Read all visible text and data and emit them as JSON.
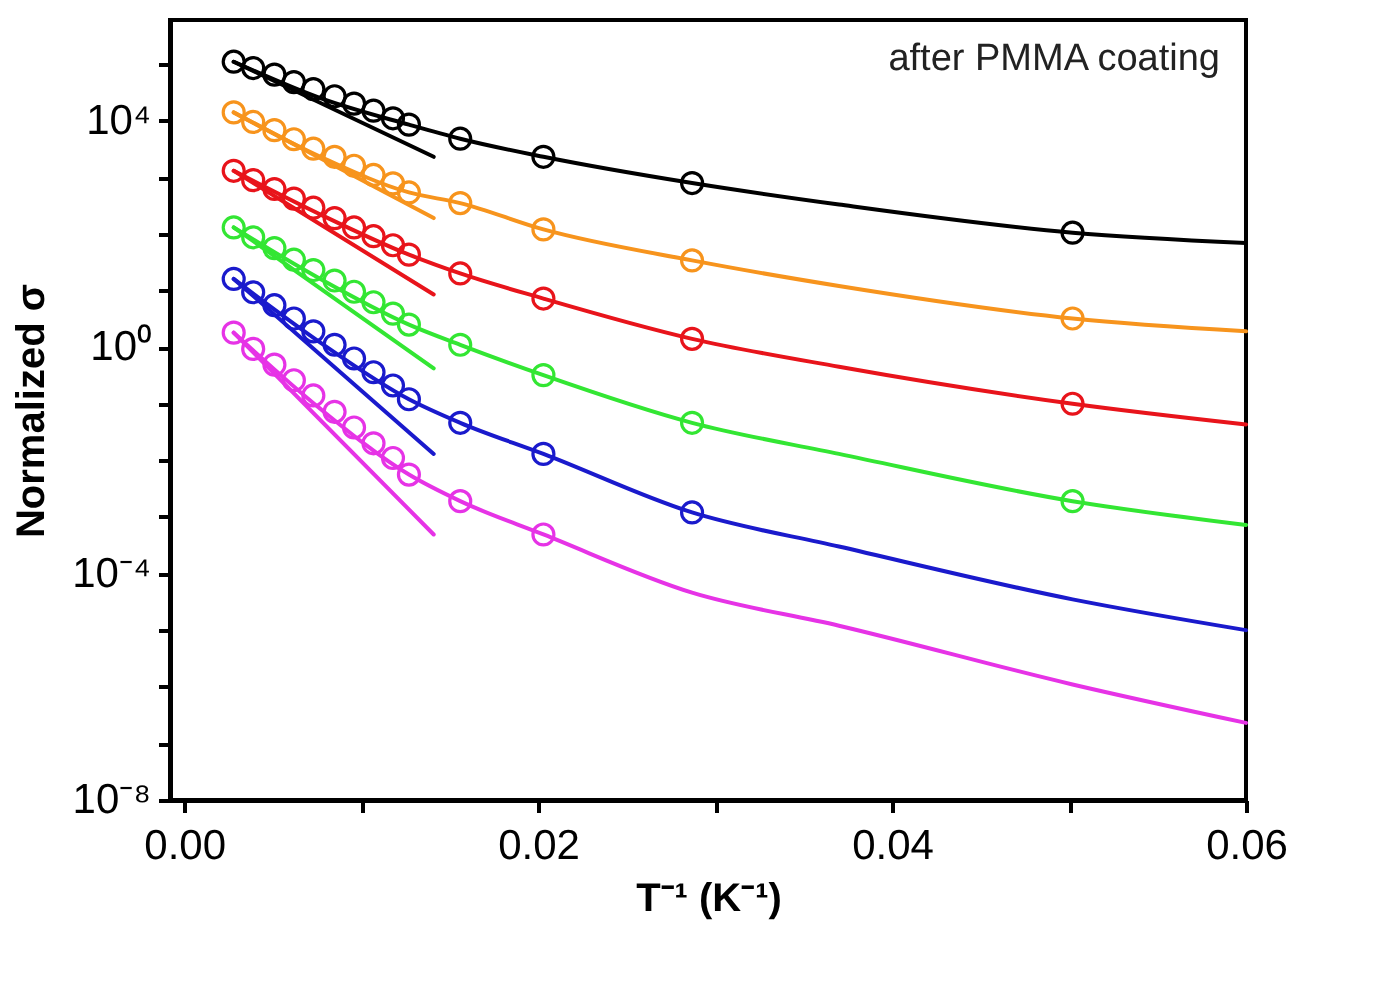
{
  "chart_data": {
    "type": "line",
    "xlabel": "T⁻¹ (K⁻¹)",
    "ylabel": "Normalized σ",
    "annotations": [
      "after PMMA coating"
    ],
    "log": "y",
    "grid": false,
    "xlim": [
      -0.0008,
      0.06
    ],
    "xticks": [
      {
        "value": 0,
        "label": "0.00"
      },
      {
        "value": 0.01,
        "label": null
      },
      {
        "value": 0.02,
        "label": "0.02"
      },
      {
        "value": 0.03,
        "label": null
      },
      {
        "value": 0.04,
        "label": "0.04"
      },
      {
        "value": 0.05,
        "label": null
      },
      {
        "value": 0.06,
        "label": "0.06"
      }
    ],
    "ylim": [
      1e-08,
      600000
    ],
    "yticks": [
      {
        "value": 1e-08,
        "label": "10⁻⁸"
      },
      {
        "value": 1e-07,
        "label": null
      },
      {
        "value": 1e-06,
        "label": null
      },
      {
        "value": 1e-05,
        "label": null
      },
      {
        "value": 0.0001,
        "label": "10⁻⁴"
      },
      {
        "value": 0.001,
        "label": null
      },
      {
        "value": 0.01,
        "label": null
      },
      {
        "value": 0.1,
        "label": null
      },
      {
        "value": 1,
        "label": "10⁰"
      },
      {
        "value": 10,
        "label": null
      },
      {
        "value": 100,
        "label": null
      },
      {
        "value": 1000,
        "label": null
      },
      {
        "value": 10000,
        "label": "10⁴"
      },
      {
        "value": 100000,
        "label": null
      }
    ],
    "series": [
      {
        "type": "scatter",
        "marker": "circle",
        "color": "#000000",
        "x": [
          0.0028,
          0.0039,
          0.0051,
          0.0062,
          0.0073,
          0.0085,
          0.0096,
          0.0107,
          0.0118,
          0.0127,
          0.0156,
          0.0203,
          0.0287,
          0.0502
        ],
        "values": [
          110000,
          85000,
          65000,
          48000,
          36000,
          27000,
          20000,
          15000,
          11000,
          8500,
          4800,
          2300,
          790,
          105
        ]
      },
      {
        "color": "#000000",
        "x": [
          0.0028,
          0.0077,
          0.0127,
          0.0156,
          0.0203,
          0.0287,
          0.037,
          0.0502,
          0.06
        ],
        "values": [
          110000,
          25000,
          8500,
          4800,
          2300,
          790,
          330,
          105,
          69
        ]
      },
      {
        "color": "#000000",
        "x": [
          0.0028,
          0.0141
        ],
        "values": [
          110000,
          2300
        ]
      },
      {
        "type": "scatter",
        "marker": "circle",
        "color": "#f7941d",
        "x": [
          0.0028,
          0.0039,
          0.0051,
          0.0062,
          0.0073,
          0.0085,
          0.0096,
          0.0107,
          0.0118,
          0.0127,
          0.0156,
          0.0203,
          0.0287,
          0.0502
        ],
        "values": [
          14000,
          9500,
          6800,
          4700,
          3200,
          2300,
          1600,
          1100,
          780,
          540,
          350,
          120,
          34,
          3.2
        ]
      },
      {
        "color": "#f7941d",
        "x": [
          0.0028,
          0.0077,
          0.0127,
          0.0156,
          0.0203,
          0.0287,
          0.037,
          0.0502,
          0.06
        ],
        "values": [
          14000,
          2300,
          540,
          350,
          120,
          34,
          12,
          3.2,
          1.9
        ]
      },
      {
        "color": "#f7941d",
        "x": [
          0.0028,
          0.0141
        ],
        "values": [
          14000,
          190
        ]
      },
      {
        "type": "scatter",
        "marker": "circle",
        "color": "#e8141b",
        "x": [
          0.0028,
          0.0039,
          0.0051,
          0.0062,
          0.0073,
          0.0085,
          0.0096,
          0.0107,
          0.0118,
          0.0127,
          0.0156,
          0.0203,
          0.0287,
          0.0502
        ],
        "values": [
          1300,
          890,
          620,
          420,
          290,
          190,
          130,
          91,
          63,
          43,
          20,
          7.2,
          1.4,
          0.1
        ]
      },
      {
        "color": "#e8141b",
        "x": [
          0.0028,
          0.0077,
          0.0127,
          0.0156,
          0.0203,
          0.0287,
          0.037,
          0.0502,
          0.06
        ],
        "values": [
          1300,
          220,
          43,
          20,
          7.2,
          1.4,
          0.45,
          0.1,
          0.043
        ]
      },
      {
        "color": "#e8141b",
        "x": [
          0.0028,
          0.0141
        ],
        "values": [
          1300,
          8.5
        ]
      },
      {
        "type": "scatter",
        "marker": "circle",
        "color": "#33e633",
        "x": [
          0.0028,
          0.0039,
          0.0051,
          0.0062,
          0.0073,
          0.0085,
          0.0096,
          0.0107,
          0.0118,
          0.0127,
          0.0156,
          0.0203,
          0.0287,
          0.0502
        ],
        "values": [
          130,
          87,
          56,
          35,
          23,
          15,
          9.5,
          6.2,
          3.9,
          2.5,
          1.1,
          0.32,
          0.046,
          0.0019
        ]
      },
      {
        "color": "#33e633",
        "x": [
          0.0028,
          0.0077,
          0.0127,
          0.0156,
          0.0203,
          0.0287,
          0.037,
          0.0502,
          0.06
        ],
        "values": [
          130,
          16,
          2.5,
          1.1,
          0.32,
          0.046,
          0.013,
          0.0019,
          0.00072
        ]
      },
      {
        "color": "#33e633",
        "x": [
          0.0028,
          0.0141
        ],
        "values": [
          130,
          0.42
        ]
      },
      {
        "type": "scatter",
        "marker": "circle",
        "color": "#1a1acc",
        "x": [
          0.0028,
          0.0039,
          0.0051,
          0.0062,
          0.0073,
          0.0085,
          0.0096,
          0.0107,
          0.0118,
          0.0127,
          0.0156,
          0.0203,
          0.0287
        ],
        "values": [
          16,
          9.3,
          5.5,
          3.2,
          1.9,
          1.1,
          0.63,
          0.36,
          0.21,
          0.12,
          0.046,
          0.013,
          0.0012
        ]
      },
      {
        "color": "#1a1acc",
        "x": [
          0.0028,
          0.0077,
          0.0127,
          0.0156,
          0.0203,
          0.0287,
          0.037,
          0.0502,
          0.06
        ],
        "values": [
          16,
          1.2,
          0.12,
          0.046,
          0.013,
          0.0012,
          0.0003,
          3.5e-05,
          1e-05
        ]
      },
      {
        "color": "#1a1acc",
        "x": [
          0.0028,
          0.0141
        ],
        "values": [
          16,
          0.013
        ]
      },
      {
        "type": "scatter",
        "marker": "circle",
        "color": "#e633e6",
        "x": [
          0.0028,
          0.0039,
          0.0051,
          0.0062,
          0.0073,
          0.0085,
          0.0096,
          0.0107,
          0.0118,
          0.0127,
          0.0156,
          0.0203
        ],
        "values": [
          1.8,
          0.93,
          0.49,
          0.26,
          0.14,
          0.072,
          0.038,
          0.02,
          0.011,
          0.0056,
          0.0019,
          0.00049
        ]
      },
      {
        "color": "#e633e6",
        "x": [
          0.0028,
          0.0077,
          0.0127,
          0.0156,
          0.0203,
          0.0287,
          0.037,
          0.0502,
          0.06
        ],
        "values": [
          1.8,
          0.081,
          0.0056,
          0.0019,
          0.00049,
          4.6e-05,
          1.2e-05,
          1.1e-06,
          2.3e-07
        ]
      },
      {
        "color": "#e633e6",
        "x": [
          0.0028,
          0.0141
        ],
        "values": [
          1.8,
          0.00049
        ]
      }
    ]
  }
}
